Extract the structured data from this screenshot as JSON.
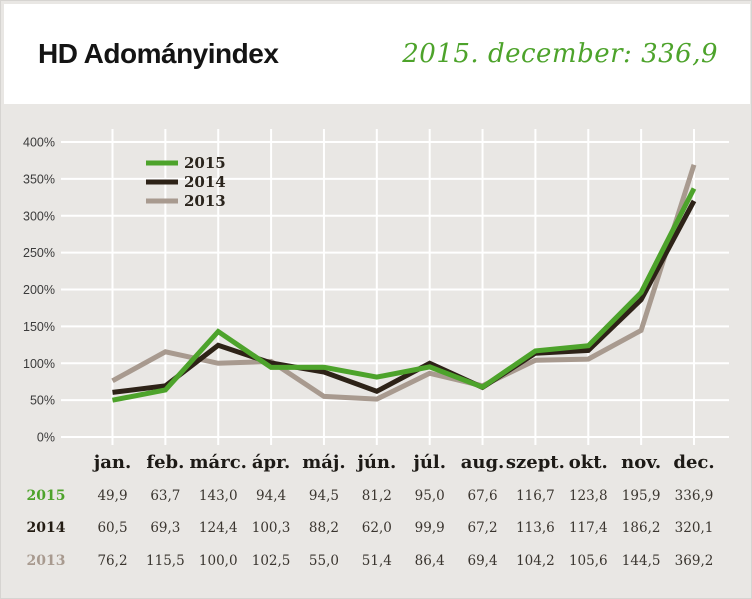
{
  "header": {
    "title": "HD Adományindex",
    "subtitle": "2015. december: 336,9"
  },
  "colors": {
    "accent_green": "#4da32b",
    "dark_brown": "#2d2217",
    "taupe": "#a89a8f",
    "page_background": "#e9e7e4",
    "header_background": "#ffffff",
    "gridline": "#ffffff"
  },
  "chart_data": {
    "type": "line",
    "x": [
      "jan.",
      "feb.",
      "márc.",
      "ápr.",
      "máj.",
      "jún.",
      "júl.",
      "aug.",
      "szept.",
      "okt.",
      "nov.",
      "dec."
    ],
    "series": [
      {
        "name": "2015",
        "color": "#4da32b",
        "values": [
          49.9,
          63.7,
          143.0,
          94.4,
          94.5,
          81.2,
          95.0,
          67.6,
          116.7,
          123.8,
          195.9,
          336.9
        ]
      },
      {
        "name": "2014",
        "color": "#2d2217",
        "values": [
          60.5,
          69.3,
          124.4,
          100.3,
          88.2,
          62.0,
          99.9,
          67.2,
          113.6,
          117.4,
          186.2,
          320.1
        ]
      },
      {
        "name": "2013",
        "color": "#a89a8f",
        "values": [
          76.2,
          115.5,
          100.0,
          102.5,
          55.0,
          51.4,
          86.4,
          69.4,
          104.2,
          105.6,
          144.5,
          369.2
        ]
      }
    ],
    "title": "HD Adományindex",
    "xlabel": "",
    "ylabel": "",
    "ylim": [
      0,
      400
    ],
    "ytick_step": 50,
    "ytick_suffix": "%",
    "grid": true,
    "legend_position": "top-left-inside",
    "legend_order": [
      "2015",
      "2014",
      "2013"
    ]
  },
  "table": {
    "columns": [
      "jan.",
      "feb.",
      "márc.",
      "ápr.",
      "máj.",
      "jún.",
      "júl.",
      "aug.",
      "szept.",
      "okt.",
      "nov.",
      "dec."
    ],
    "rows": [
      {
        "label": "2015",
        "color": "#4da32b",
        "values": [
          "49,9",
          "63,7",
          "143,0",
          "94,4",
          "94,5",
          "81,2",
          "95,0",
          "67,6",
          "116,7",
          "123,8",
          "195,9",
          "336,9"
        ]
      },
      {
        "label": "2014",
        "color": "#231c13",
        "values": [
          "60,5",
          "69,3",
          "124,4",
          "100,3",
          "88,2",
          "62,0",
          "99,9",
          "67,2",
          "113,6",
          "117,4",
          "186,2",
          "320,1"
        ]
      },
      {
        "label": "2013",
        "color": "#a89a8f",
        "values": [
          "76,2",
          "115,5",
          "100,0",
          "102,5",
          "55,0",
          "51,4",
          "86,4",
          "69,4",
          "104,2",
          "105,6",
          "144,5",
          "369,2"
        ]
      }
    ]
  }
}
